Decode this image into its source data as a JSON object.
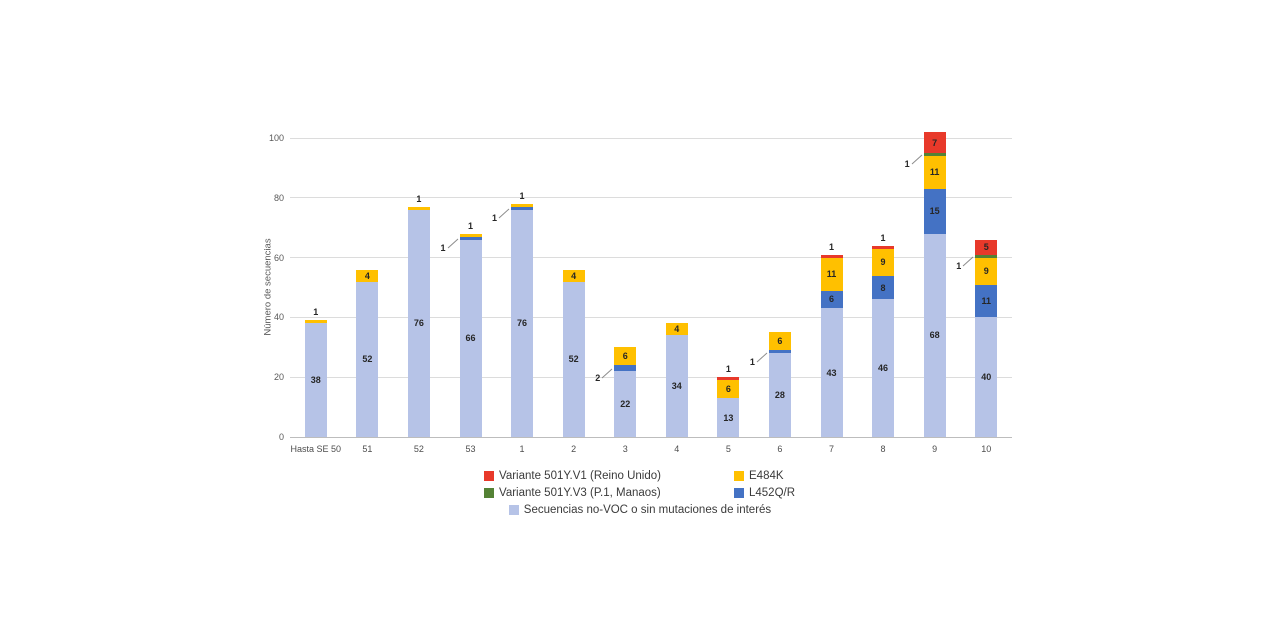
{
  "chart_data": {
    "type": "bar",
    "stacked": true,
    "title": "",
    "xlabel": "",
    "ylabel": "Número de secuencias",
    "ylim": [
      0,
      100
    ],
    "yticks": [
      0,
      20,
      40,
      60,
      80,
      100
    ],
    "grid": true,
    "legend_position": "bottom",
    "categories": [
      "Hasta SE 50",
      "51",
      "52",
      "53",
      "1",
      "2",
      "3",
      "4",
      "5",
      "6",
      "7",
      "8",
      "9",
      "10"
    ],
    "series": [
      {
        "key": "novoc",
        "name": "Secuencias no-VOC o sin mutaciones de interés",
        "color": "#b6c3e7",
        "values": [
          38,
          52,
          76,
          66,
          76,
          52,
          22,
          34,
          13,
          28,
          43,
          46,
          68,
          40
        ]
      },
      {
        "key": "l452qr",
        "name": "L452Q/R",
        "color": "#4472c4",
        "values": [
          0,
          0,
          0,
          1,
          1,
          0,
          2,
          0,
          0,
          1,
          6,
          8,
          15,
          11
        ]
      },
      {
        "key": "e484k",
        "name": "E484K",
        "color": "#ffc000",
        "values": [
          1,
          4,
          1,
          1,
          1,
          4,
          6,
          4,
          6,
          6,
          11,
          9,
          11,
          9
        ]
      },
      {
        "key": "v3",
        "name": "Variante 501Y.V3 (P.1, Manaos)",
        "color": "#548235",
        "values": [
          0,
          0,
          0,
          0,
          0,
          0,
          0,
          0,
          0,
          0,
          0,
          0,
          1,
          1
        ]
      },
      {
        "key": "v1",
        "name": "Variante 501Y.V1 (Reino Unido)",
        "color": "#e8392a",
        "values": [
          0,
          0,
          0,
          0,
          0,
          0,
          0,
          0,
          1,
          0,
          1,
          1,
          7,
          5
        ]
      }
    ],
    "legend": {
      "rows": [
        [
          {
            "label": "Variante 501Y.V1 (Reino Unido)",
            "color": "#e8392a"
          },
          {
            "label": "E484K",
            "color": "#ffc000"
          }
        ],
        [
          {
            "label": "Variante 501Y.V3 (P.1, Manaos)",
            "color": "#548235"
          },
          {
            "label": "L452Q/R",
            "color": "#4472c4"
          }
        ],
        [
          {
            "label": "Secuencias no-VOC o sin mutaciones de interés",
            "color": "#b6c3e7"
          }
        ]
      ]
    }
  }
}
